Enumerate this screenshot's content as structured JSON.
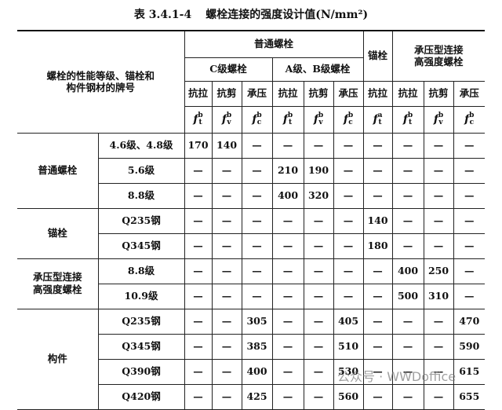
{
  "title": {
    "number": "表 3.4.1-4",
    "text": "螺栓连接的强度设计值(N/mm²)"
  },
  "table": {
    "row_header": [
      "螺栓的性能等级、锚栓和",
      "构件钢材的牌号"
    ],
    "header": {
      "ordinary_bolt": "普通螺栓",
      "grade_c": "C级螺栓",
      "grade_ab": "A级、B级螺栓",
      "anchor_bolt": "锚栓",
      "high_strength": [
        "承压型连接",
        "高强度螺栓"
      ]
    },
    "columns": [
      {
        "label": "抗拉",
        "symbol": {
          "base": "f",
          "sup": "b",
          "sub": "t"
        }
      },
      {
        "label": "抗剪",
        "symbol": {
          "base": "f",
          "sup": "b",
          "sub": "v"
        }
      },
      {
        "label": "承压",
        "symbol": {
          "base": "f",
          "sup": "b",
          "sub": "c"
        }
      },
      {
        "label": "抗拉",
        "symbol": {
          "base": "f",
          "sup": "b",
          "sub": "t"
        }
      },
      {
        "label": "抗剪",
        "symbol": {
          "base": "f",
          "sup": "b",
          "sub": "v"
        }
      },
      {
        "label": "承压",
        "symbol": {
          "base": "f",
          "sup": "b",
          "sub": "c"
        }
      },
      {
        "label": "抗拉",
        "symbol": {
          "base": "f",
          "sup": "a",
          "sub": "t"
        }
      },
      {
        "label": "抗拉",
        "symbol": {
          "base": "f",
          "sup": "b",
          "sub": "t"
        }
      },
      {
        "label": "抗剪",
        "symbol": {
          "base": "f",
          "sup": "b",
          "sub": "v"
        }
      },
      {
        "label": "承压",
        "symbol": {
          "base": "f",
          "sup": "b",
          "sub": "c"
        }
      }
    ],
    "sections": [
      {
        "label": [
          "普通螺栓"
        ],
        "rows": [
          {
            "label": "4.6级、4.8级",
            "values": [
              170,
              140,
              "—",
              "—",
              "—",
              "—",
              "—",
              "—",
              "—",
              "—"
            ]
          },
          {
            "label": "5.6级",
            "values": [
              "—",
              "—",
              "—",
              210,
              190,
              "—",
              "—",
              "—",
              "—",
              "—"
            ]
          },
          {
            "label": "8.8级",
            "values": [
              "—",
              "—",
              "—",
              400,
              320,
              "—",
              "—",
              "—",
              "—",
              "—"
            ]
          }
        ]
      },
      {
        "label": [
          "锚栓"
        ],
        "rows": [
          {
            "label": "Q235钢",
            "values": [
              "—",
              "—",
              "—",
              "—",
              "—",
              "—",
              140,
              "—",
              "—",
              "—"
            ]
          },
          {
            "label": "Q345钢",
            "values": [
              "—",
              "—",
              "—",
              "—",
              "—",
              "—",
              180,
              "—",
              "—",
              "—"
            ]
          }
        ]
      },
      {
        "label": [
          "承压型连接",
          "高强度螺栓"
        ],
        "rows": [
          {
            "label": "8.8级",
            "values": [
              "—",
              "—",
              "—",
              "—",
              "—",
              "—",
              "—",
              400,
              250,
              "—"
            ]
          },
          {
            "label": "10.9级",
            "values": [
              "—",
              "—",
              "—",
              "—",
              "—",
              "—",
              "—",
              500,
              310,
              "—"
            ]
          }
        ]
      },
      {
        "label": [
          "构件"
        ],
        "rows": [
          {
            "label": "Q235钢",
            "values": [
              "—",
              "—",
              305,
              "—",
              "—",
              405,
              "—",
              "—",
              "—",
              470
            ]
          },
          {
            "label": "Q345钢",
            "values": [
              "—",
              "—",
              385,
              "—",
              "—",
              510,
              "—",
              "—",
              "—",
              590
            ]
          },
          {
            "label": "Q390钢",
            "values": [
              "—",
              "—",
              400,
              "—",
              "—",
              530,
              "—",
              "—",
              "—",
              615
            ]
          },
          {
            "label": "Q420钢",
            "values": [
              "—",
              "—",
              425,
              "—",
              "—",
              560,
              "—",
              "—",
              "—",
              655
            ]
          }
        ]
      }
    ]
  },
  "watermark": "公众号 · WWDoffice"
}
